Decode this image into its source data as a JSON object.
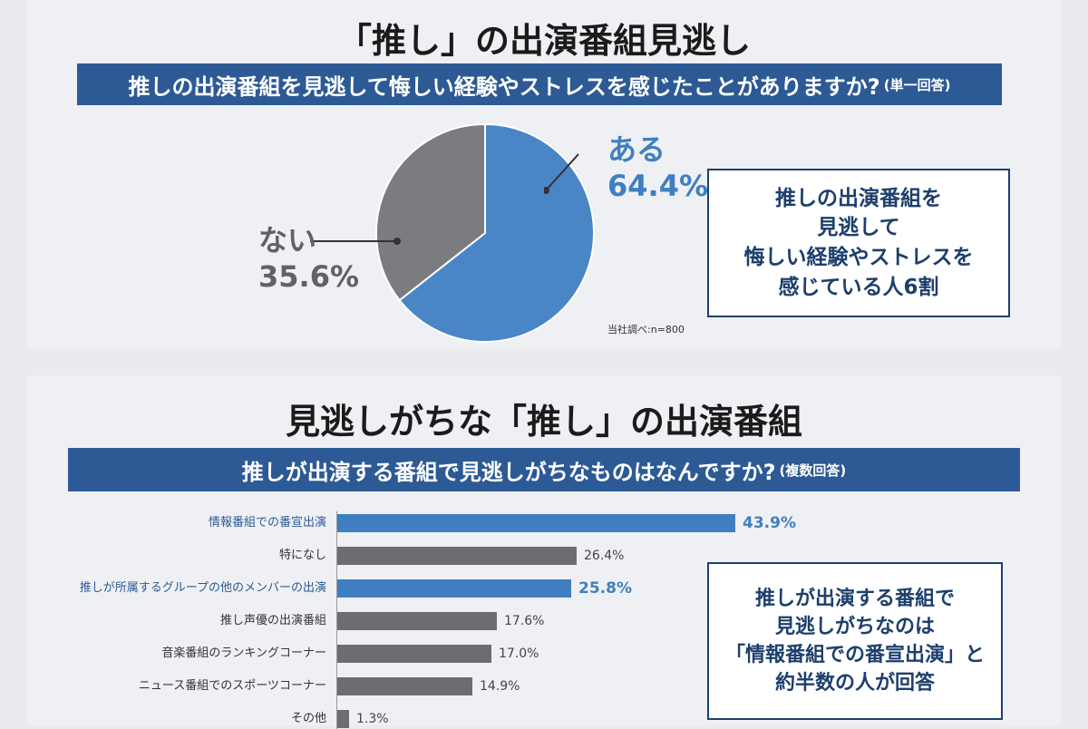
{
  "panel1": {
    "title": "「推し」の出演番組見逃し",
    "question": "推しの出演番組を見逃して悔しい経験やストレスを感じたことがありますか?",
    "question_note": "(単一回答)",
    "summary_lines": [
      "推しの出演番組を",
      "見逃して",
      "悔しい経験やストレスを",
      "感じている人6割"
    ],
    "note": "当社調べ:n=800"
  },
  "panel2": {
    "title": "見逃しがちな「推し」の出演番組",
    "question": "推しが出演する番組で見逃しがちなものはなんですか?",
    "question_note": "(複数回答)",
    "summary_lines": [
      "推しが出演する番組で",
      "見逃しがちなのは",
      "「情報番組での番宣出演」と",
      "約半数の人が回答"
    ]
  },
  "chart_data": [
    {
      "type": "pie",
      "title": "",
      "slices": [
        {
          "label": "ある",
          "value": 64.4,
          "value_label": "64.4%",
          "color": "#4a86c5"
        },
        {
          "label": "ない",
          "value": 35.6,
          "value_label": "35.6%",
          "color": "#7a7c7f"
        }
      ]
    },
    {
      "type": "bar",
      "orientation": "horizontal",
      "title": "",
      "categories": [
        "情報番組での番宣出演",
        "特になし",
        "推しが所属するグループの他のメンバーの出演",
        "推し声優の出演番組",
        "音楽番組のランキングコーナー",
        "ニュース番組でのスポーツコーナー",
        "その他"
      ],
      "values": [
        43.9,
        26.4,
        25.8,
        17.6,
        17.0,
        14.9,
        1.3
      ],
      "value_labels": [
        "43.9%",
        "26.4%",
        "25.8%",
        "17.6%",
        "17.0%",
        "14.9%",
        "1.3%"
      ],
      "highlighted": [
        true,
        false,
        true,
        false,
        false,
        false,
        false
      ],
      "colors": {
        "highlight": "#3f7fc1",
        "default": "#6b6d70"
      },
      "xlim": [
        0,
        60
      ]
    }
  ]
}
